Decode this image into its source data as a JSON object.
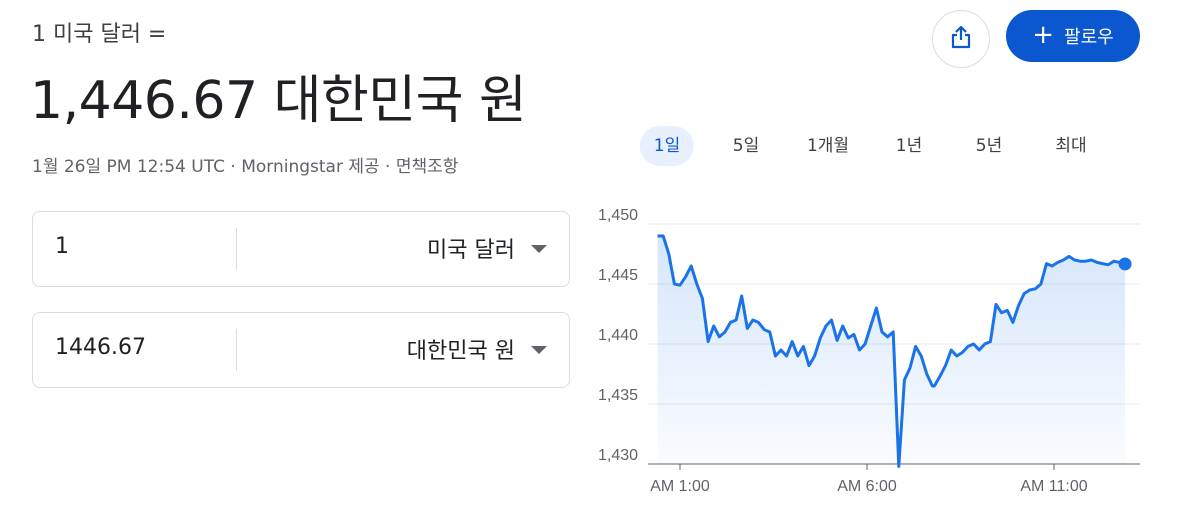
{
  "header": {
    "subtitle": "1 미국 달러 =",
    "rate": "1,446.67 대한민국 원",
    "date": "1월 26일 PM 12:54 UTC",
    "sep1": " · ",
    "source": "Morningstar 제공",
    "sep2": " · ",
    "disclaimer": "면책조항"
  },
  "actions": {
    "share_icon": "share-icon",
    "follow_label": "팔로우",
    "follow_plus": "+",
    "accent": "#0b57d0"
  },
  "converter": {
    "from_value": "1",
    "from_currency": "미국 달러",
    "to_value": "1446.67",
    "to_currency": "대한민국 원"
  },
  "tabs": [
    {
      "label": "1일",
      "active": true
    },
    {
      "label": "5일",
      "active": false
    },
    {
      "label": "1개월",
      "active": false
    },
    {
      "label": "1년",
      "active": false
    },
    {
      "label": "5년",
      "active": false
    },
    {
      "label": "최대",
      "active": false
    }
  ],
  "chart_data": {
    "type": "line",
    "y_ticks": [
      "1,450",
      "1,445",
      "1,440",
      "1,435",
      "1,430"
    ],
    "x_ticks": [
      "AM 1:00",
      "AM 6:00",
      "AM 11:00"
    ],
    "ylim": [
      1430,
      1450
    ],
    "grid": true,
    "line_color": "#1a73e8",
    "x_hours": [
      0.4,
      0.55,
      0.7,
      0.85,
      1.0,
      1.15,
      1.3,
      1.45,
      1.6,
      1.75,
      1.9,
      2.05,
      2.2,
      2.35,
      2.5,
      2.65,
      2.8,
      2.95,
      3.1,
      3.25,
      3.4,
      3.55,
      3.7,
      3.85,
      4.0,
      4.15,
      4.3,
      4.45,
      4.6,
      4.75,
      4.9,
      5.05,
      5.2,
      5.35,
      5.5,
      5.65,
      5.8,
      5.95,
      6.1,
      6.25,
      6.4,
      6.55,
      6.7,
      6.85,
      7.0,
      7.15,
      7.3,
      7.45,
      7.6,
      7.75,
      7.8,
      7.95,
      8.1,
      8.25,
      8.4,
      8.55,
      8.7,
      8.85,
      9.0,
      9.15,
      9.3,
      9.45,
      9.6,
      9.75,
      9.9,
      10.05,
      10.2,
      10.35,
      10.5,
      10.65,
      10.8,
      10.95,
      11.1,
      11.25,
      11.4,
      11.55,
      11.7,
      11.85,
      12.0,
      12.15,
      12.3,
      12.45,
      12.6,
      12.75,
      12.9
    ],
    "values": [
      1449.0,
      1449.0,
      1447.5,
      1445.0,
      1444.9,
      1445.6,
      1446.5,
      1445.0,
      1443.8,
      1440.2,
      1441.5,
      1440.6,
      1441.0,
      1441.8,
      1442.0,
      1444.0,
      1441.3,
      1442.0,
      1441.8,
      1441.2,
      1441.0,
      1439.0,
      1439.5,
      1439.0,
      1440.2,
      1439.0,
      1439.8,
      1438.2,
      1439.0,
      1440.5,
      1441.5,
      1442.0,
      1440.3,
      1441.5,
      1440.5,
      1440.8,
      1439.5,
      1440.0,
      1441.5,
      1443.0,
      1441.0,
      1440.6,
      1441.0,
      1429.8,
      1437.0,
      1438.0,
      1439.8,
      1439.0,
      1437.5,
      1436.5,
      1436.5,
      1437.3,
      1438.2,
      1439.5,
      1439.0,
      1439.3,
      1439.8,
      1440.0,
      1439.5,
      1440.0,
      1440.2,
      1443.3,
      1442.6,
      1442.8,
      1441.8,
      1443.2,
      1444.2,
      1444.5,
      1444.6,
      1445.0,
      1446.7,
      1446.5,
      1446.8,
      1447.0,
      1447.3,
      1447.0,
      1446.9,
      1446.9,
      1447.0,
      1446.8,
      1446.7,
      1446.6,
      1446.9,
      1446.8,
      1446.67
    ],
    "last_point_hour": 12.9,
    "x_hour_of_first_tick": 1
  }
}
